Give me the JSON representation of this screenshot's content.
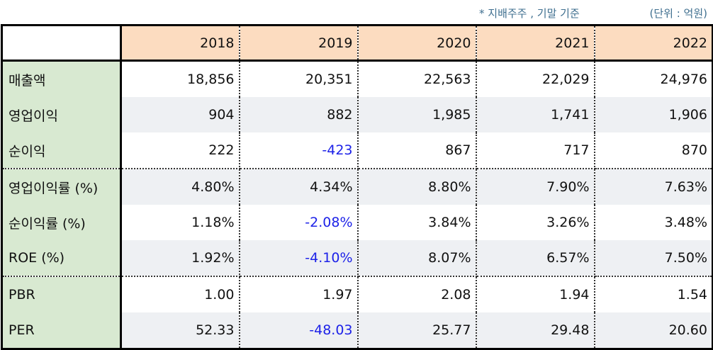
{
  "notes": {
    "basis": "* 지배주주 , 기말 기준",
    "unit": "(단위 : 억원)"
  },
  "table": {
    "years": [
      "2018",
      "2019",
      "2020",
      "2021",
      "2022"
    ],
    "rows": [
      {
        "label": "매출액",
        "values": [
          "18,856",
          "20,351",
          "22,563",
          "22,029",
          "24,976"
        ]
      },
      {
        "label": "영업이익",
        "values": [
          "904",
          "882",
          "1,985",
          "1,741",
          "1,906"
        ]
      },
      {
        "label": "순이익",
        "values": [
          "222",
          "-423",
          "867",
          "717",
          "870"
        ]
      },
      {
        "label": "영업이익률 (%)",
        "values": [
          "4.80%",
          "4.34%",
          "8.80%",
          "7.90%",
          "7.63%"
        ]
      },
      {
        "label": "순이익률 (%)",
        "values": [
          "1.18%",
          "-2.08%",
          "3.84%",
          "3.26%",
          "3.48%"
        ]
      },
      {
        "label": "ROE (%)",
        "values": [
          "1.92%",
          "-4.10%",
          "8.07%",
          "6.57%",
          "7.50%"
        ]
      },
      {
        "label": "PBR",
        "values": [
          "1.00",
          "1.97",
          "2.08",
          "1.94",
          "1.54"
        ]
      },
      {
        "label": "PER",
        "values": [
          "52.33",
          "-48.03",
          "25.77",
          "29.48",
          "20.60"
        ]
      }
    ]
  },
  "colors": {
    "label_bg": "#d8e9d1",
    "header_bg": "#fcdcc0",
    "shade_row_bg": "#eef0f3",
    "negative_text": "#1d22e8",
    "note_text": "#3f6f8f"
  }
}
